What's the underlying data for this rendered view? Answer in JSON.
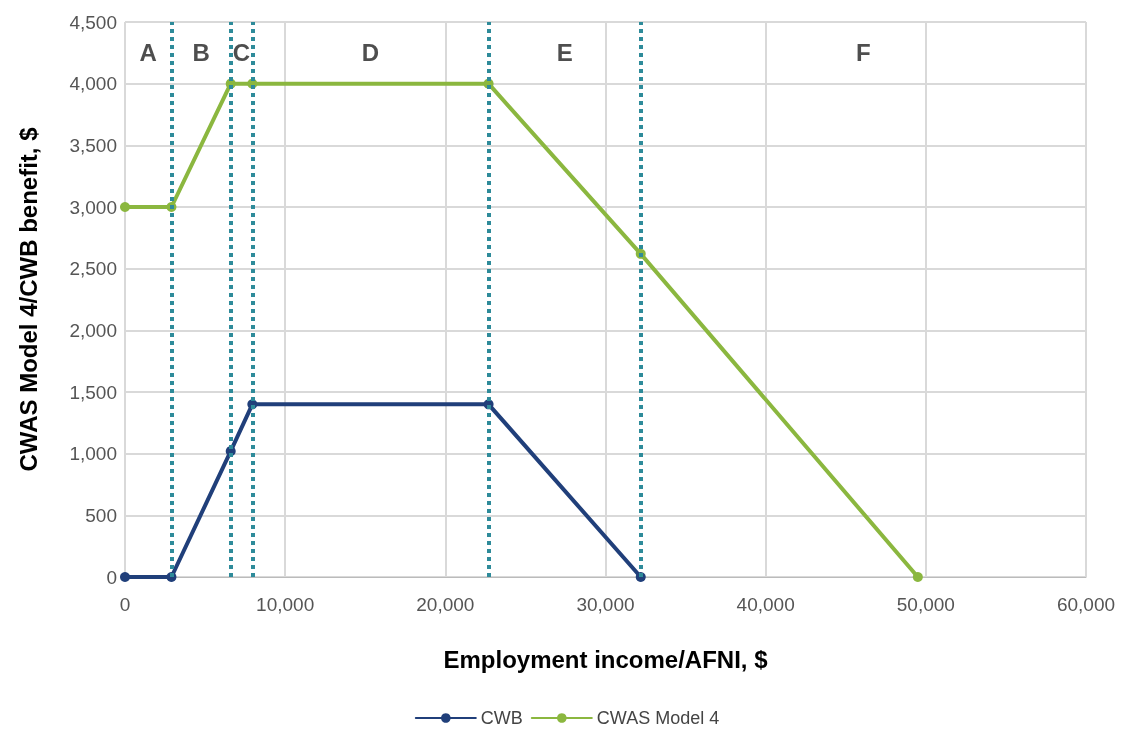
{
  "chart_data": {
    "type": "line",
    "xlabel": "Employment income/AFNI, $",
    "ylabel": "CWAS Model 4/CWB benefit, $",
    "series": [
      {
        "name": "CWB",
        "color": "#203f7a",
        "x": [
          0,
          2900,
          6600,
          7950,
          22700,
          32200
        ],
        "values": [
          0,
          0,
          1020,
          1400,
          1400,
          0
        ]
      },
      {
        "name": "CWAS Model 4",
        "color": "#8bb73f",
        "x": [
          0,
          2900,
          6600,
          7950,
          22700,
          32200,
          49500
        ],
        "values": [
          3000,
          3000,
          4000,
          4000,
          4000,
          2620,
          0
        ]
      }
    ],
    "xlim": [
      0,
      60000
    ],
    "xticks": [
      {
        "value": 0,
        "label": "0"
      },
      {
        "value": 10000,
        "label": "10,000"
      },
      {
        "value": 20000,
        "label": "20,000"
      },
      {
        "value": 30000,
        "label": "30,000"
      },
      {
        "value": 40000,
        "label": "40,000"
      },
      {
        "value": 50000,
        "label": "50,000"
      },
      {
        "value": 60000,
        "label": "60,000"
      }
    ],
    "ylim": [
      0,
      4500
    ],
    "yticks": [
      {
        "value": 0,
        "label": "0"
      },
      {
        "value": 500,
        "label": "500"
      },
      {
        "value": 1000,
        "label": "1,000"
      },
      {
        "value": 1500,
        "label": "1,500"
      },
      {
        "value": 2000,
        "label": "2,000"
      },
      {
        "value": 2500,
        "label": "2,500"
      },
      {
        "value": 3000,
        "label": "3,000"
      },
      {
        "value": 3500,
        "label": "3,500"
      },
      {
        "value": 4000,
        "label": "4,000"
      },
      {
        "value": 4500,
        "label": "4,500"
      }
    ],
    "ref_lines": [
      {
        "axis": "x",
        "value": 2900,
        "color": "#2e8b9a",
        "line_style": "dotted"
      },
      {
        "axis": "x",
        "value": 6600,
        "color": "#2e8b9a",
        "line_style": "dotted"
      },
      {
        "axis": "x",
        "value": 7950,
        "color": "#2e8b9a",
        "line_style": "dotted"
      },
      {
        "axis": "x",
        "value": 22700,
        "color": "#2e8b9a",
        "line_style": "dotted"
      },
      {
        "axis": "x",
        "value": 32200,
        "color": "#2e8b9a",
        "line_style": "dotted"
      }
    ],
    "annotations": [
      "A",
      "B",
      "C",
      "D",
      "E",
      "F"
    ],
    "grid": true,
    "legend": "bottom",
    "marker": "circle",
    "line_style": "solid"
  }
}
